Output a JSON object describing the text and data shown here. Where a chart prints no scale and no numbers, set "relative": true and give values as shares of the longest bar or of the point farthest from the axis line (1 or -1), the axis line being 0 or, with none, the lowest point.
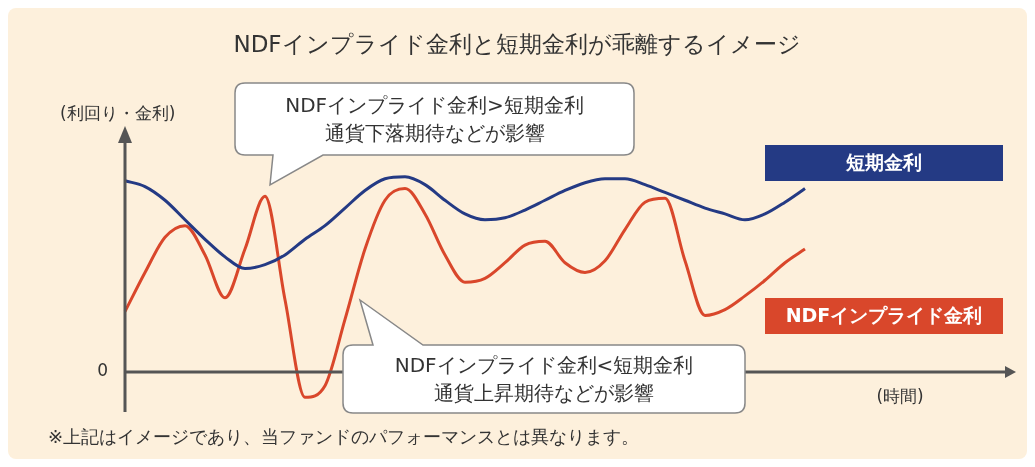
{
  "chart_data": {
    "type": "line",
    "title": "NDFインプライド金利と短期金利が乖離するイメージ",
    "xlabel": "(時間)",
    "relative": true,
    "legend": false,
    "marker": "none",
    "line_style": "solid",
    "categories": [
      null,
      null,
      null,
      null,
      null,
      null,
      null,
      null,
      null,
      null,
      null,
      null,
      null,
      null,
      null,
      null,
      null,
      null,
      null,
      null,
      null,
      null,
      null,
      null,
      null,
      null,
      null,
      null,
      null,
      null,
      null,
      null,
      null,
      null,
      null
    ],
    "series": [
      {
        "name": "短期金利",
        "color": "#243a84",
        "values": [
          0.98,
          0.95,
          0.88,
          0.78,
          0.68,
          0.59,
          0.53,
          0.55,
          0.6,
          0.68,
          0.75,
          0.84,
          0.93,
          0.99,
          1.0,
          0.96,
          0.88,
          0.81,
          0.78,
          0.79,
          0.83,
          0.88,
          0.93,
          0.97,
          0.99,
          0.99,
          0.96,
          0.92,
          0.88,
          0.84,
          0.81,
          0.78,
          0.81,
          0.87,
          0.94
        ]
      },
      {
        "name": "NDFインプライド金利",
        "color": "#d9472b",
        "values": [
          0.31,
          0.51,
          0.69,
          0.75,
          0.6,
          0.38,
          0.63,
          0.9,
          0.37,
          -0.13,
          -0.07,
          0.27,
          0.63,
          0.88,
          0.94,
          0.81,
          0.6,
          0.46,
          0.48,
          0.56,
          0.65,
          0.67,
          0.56,
          0.51,
          0.57,
          0.73,
          0.87,
          0.89,
          0.57,
          0.29,
          0.32,
          0.39,
          0.47,
          0.56,
          0.63
        ]
      }
    ],
    "annotations": [
      "NDFインプライド金利>短期金利通貨下落期待などが影響",
      "NDFインプライド金利<短期金利通貨上昇期待などが影響",
      "(利回り・金利)",
      "0",
      "※上記はイメージであり、当ファンドのパフォーマンスとは異なります。"
    ]
  }
}
